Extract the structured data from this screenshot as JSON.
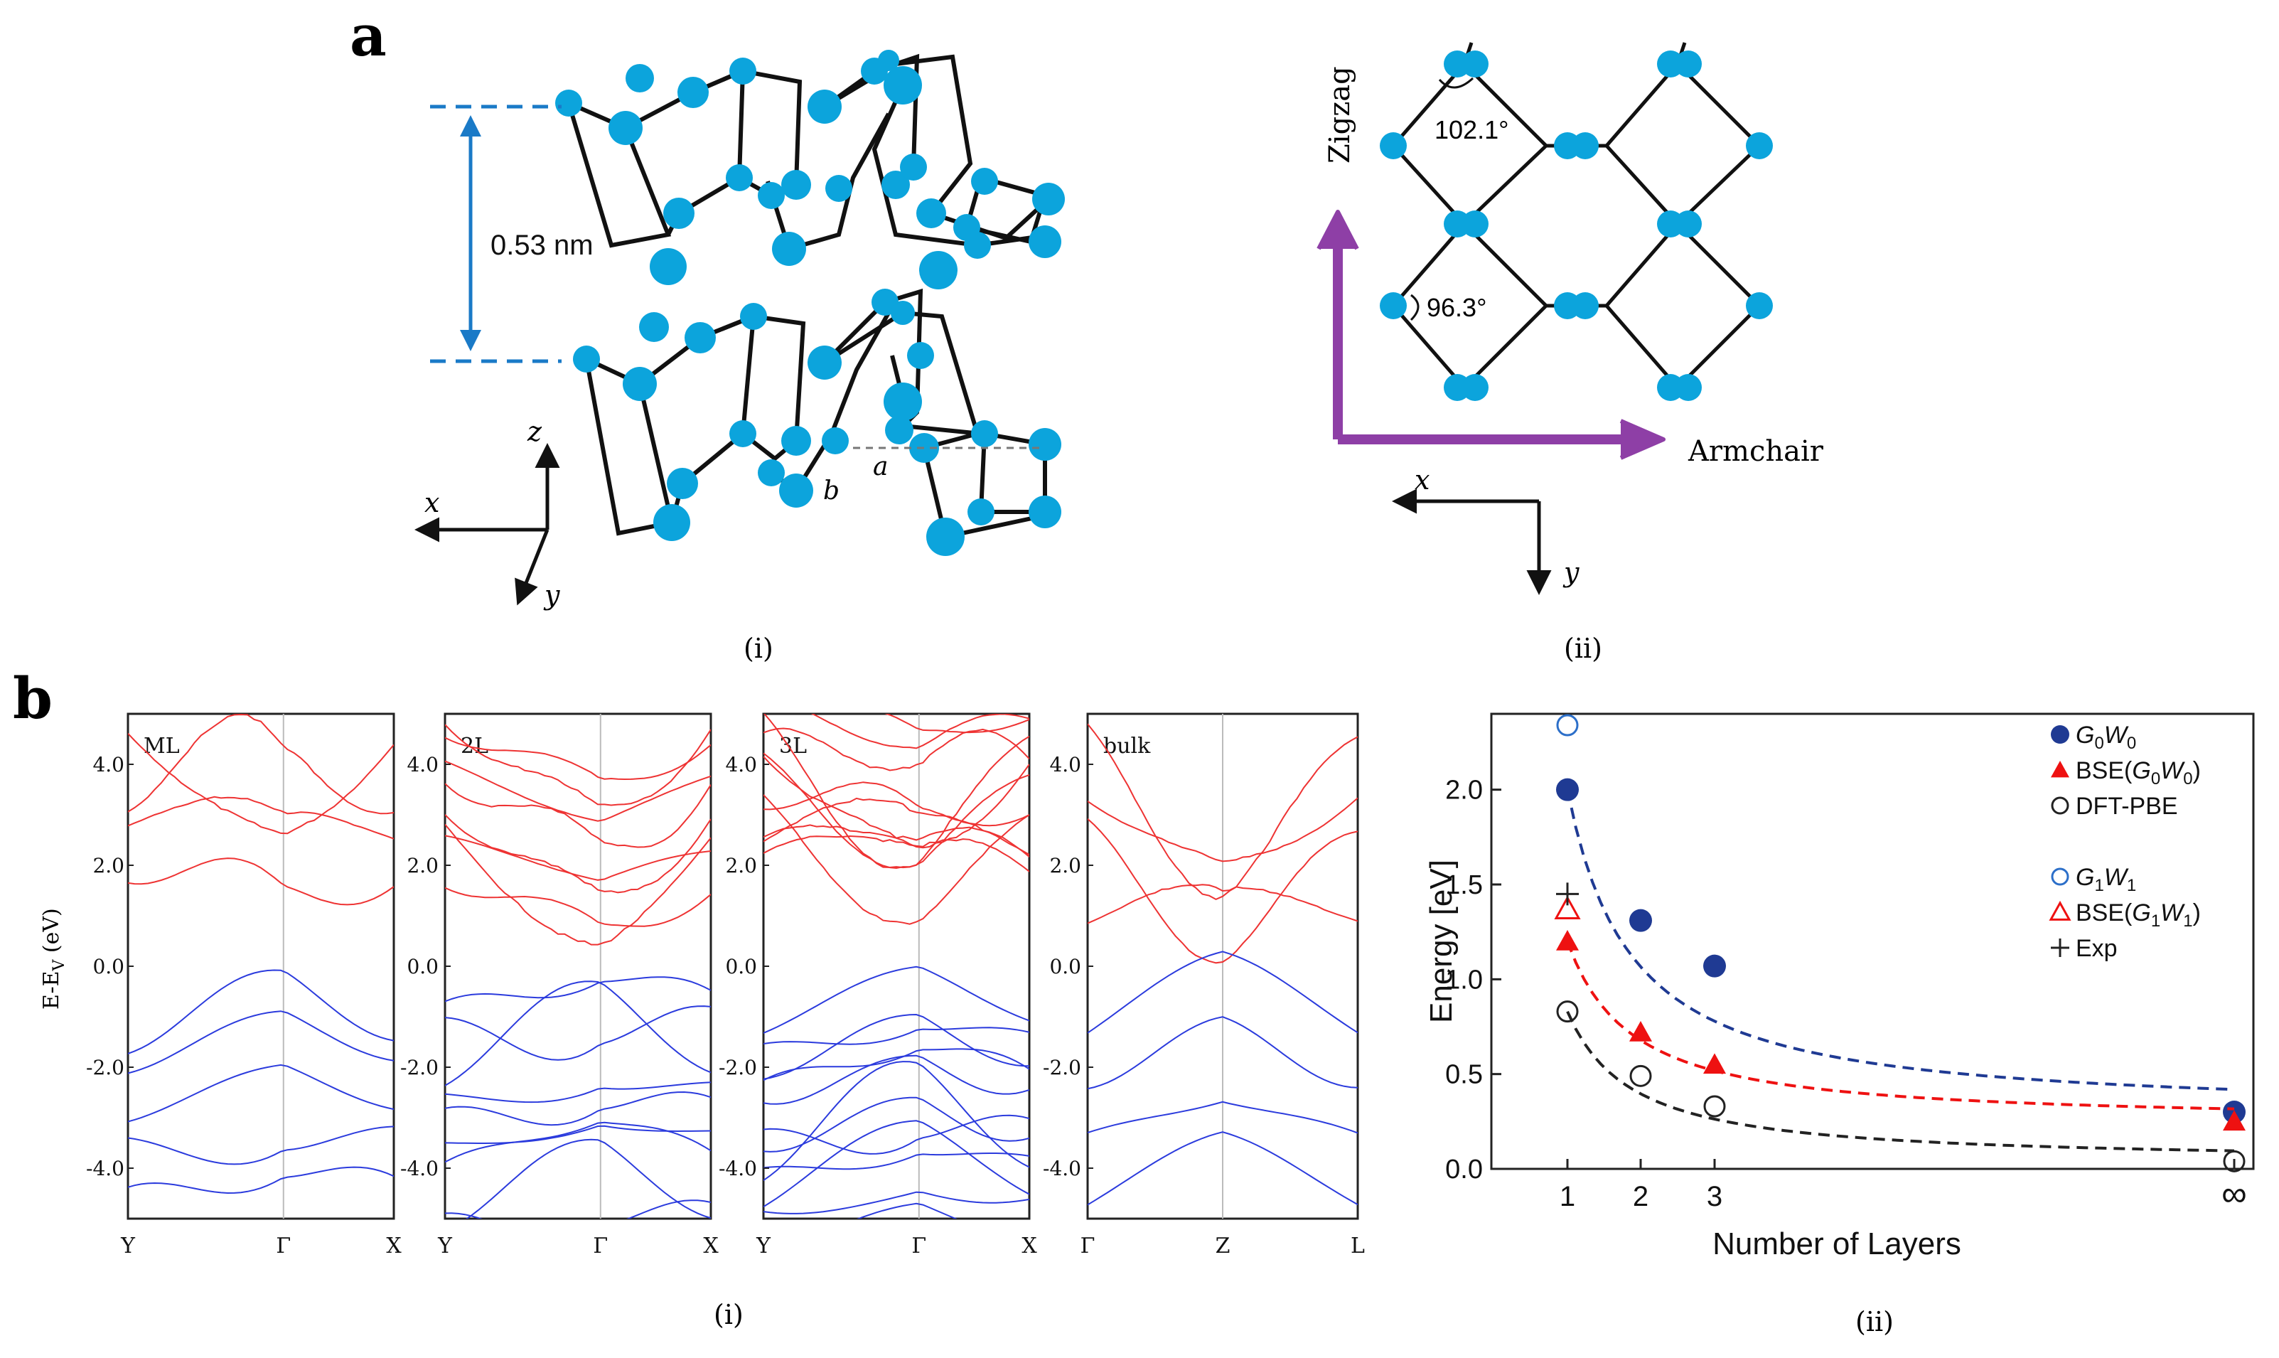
{
  "panel_a": {
    "letter": "a",
    "sub_i": "(i)",
    "sub_ii": "(ii)",
    "interlayer": "0.53 nm",
    "axis_x": "x",
    "axis_y": "y",
    "axis_z": "z",
    "lat_a": "a",
    "lat_b": "b",
    "angle1": "102.1°",
    "angle2": "96.3°",
    "zigzag": "Zigzag",
    "armchair": "Armchair"
  },
  "panel_b": {
    "letter": "b",
    "sub_i": "(i)",
    "sub_ii": "(ii)",
    "ylabel": "E-E",
    "ylabel_sub": "V",
    "ylabel_unit": " (eV)",
    "yticks": [
      "4.0",
      "2.0",
      "0.0",
      "-2.0",
      "-4.0"
    ],
    "bands": [
      {
        "label": "ML",
        "kpts": [
          "Y",
          "Γ",
          "X"
        ]
      },
      {
        "label": "2L",
        "kpts": [
          "Y",
          "Γ",
          "X"
        ]
      },
      {
        "label": "3L",
        "kpts": [
          "Y",
          "Γ",
          "X"
        ]
      },
      {
        "label": "bulk",
        "kpts": [
          "Γ",
          "Z",
          "L"
        ]
      }
    ],
    "colors": {
      "conduction": "#ee3333",
      "valence": "#2b3bdd"
    }
  },
  "chart_data": {
    "type": "scatter",
    "title": "",
    "xlabel": "Number of Layers",
    "ylabel": "Energy  [eV]",
    "xticks": [
      "1",
      "2",
      "3",
      "∞"
    ],
    "yticks": [
      "0.0",
      "0.5",
      "1.0",
      "1.5",
      "2.0"
    ],
    "ylim": [
      0,
      2.4
    ],
    "legend_position": "top-right",
    "series": [
      {
        "name": "G0W0",
        "label": "G",
        "s1": "0",
        "mid": "W",
        "s2": "0",
        "suffix": "",
        "color": "#1f3a93",
        "marker": "filled-circle",
        "x": [
          "1",
          "2",
          "3",
          "∞"
        ],
        "values": [
          2.0,
          1.31,
          1.07,
          0.3
        ],
        "fit": true
      },
      {
        "name": "BSE(G0W0)",
        "label": "BSE(G",
        "s1": "0",
        "mid": "W",
        "s2": "0",
        "suffix": ")",
        "color": "#ee1111",
        "marker": "filled-triangle",
        "x": [
          "1",
          "2",
          "3",
          "∞"
        ],
        "values": [
          1.2,
          0.72,
          0.55,
          0.25
        ],
        "fit": true
      },
      {
        "name": "DFT-PBE",
        "label": "DFT-PBE",
        "color": "#222222",
        "marker": "open-circle",
        "x": [
          "1",
          "2",
          "3",
          "∞"
        ],
        "values": [
          0.83,
          0.49,
          0.33,
          0.04
        ],
        "fit": true
      },
      {
        "name": "G1W1",
        "label": "G",
        "s1": "1",
        "mid": "W",
        "s2": "1",
        "suffix": "",
        "color": "#2c6fc9",
        "marker": "open-circle",
        "x": [
          "1"
        ],
        "values": [
          2.34
        ],
        "fit": false
      },
      {
        "name": "BSE(G1W1)",
        "label": "BSE(G",
        "s1": "1",
        "mid": "W",
        "s2": "1",
        "suffix": ")",
        "color": "#ee1111",
        "marker": "open-triangle",
        "x": [
          "1"
        ],
        "values": [
          1.37
        ],
        "fit": false
      },
      {
        "name": "Exp",
        "label": "Exp",
        "color": "#222222",
        "marker": "plus",
        "x": [
          "1"
        ],
        "values": [
          1.45
        ],
        "fit": false
      }
    ]
  }
}
